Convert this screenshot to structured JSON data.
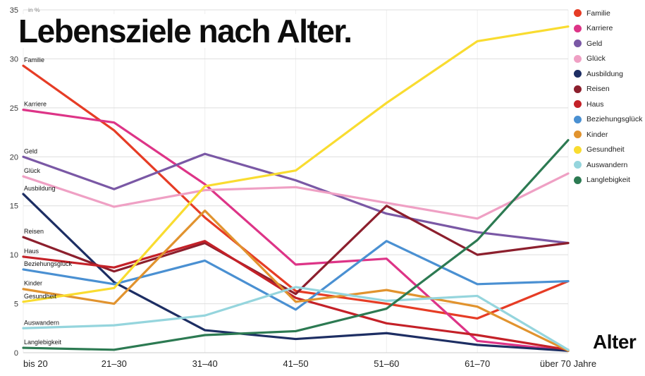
{
  "chart_data": {
    "type": "line",
    "title": "Lebensziele nach Alter.",
    "unit_label": "in %",
    "xlabel": "Alter",
    "ylim": [
      0,
      35
    ],
    "ytick_step": 5,
    "grid": true,
    "legend_position": "right",
    "categories": [
      "bis 20",
      "21–30",
      "31–40",
      "41–50",
      "51–60",
      "61–70",
      "über 70 Jahre"
    ],
    "series": [
      {
        "name": "Familie",
        "color": "#e63c25",
        "values": [
          29.3,
          22.7,
          13.8,
          6.3,
          5.0,
          3.5,
          7.3
        ]
      },
      {
        "name": "Karriere",
        "color": "#dd3487",
        "values": [
          24.8,
          23.5,
          17.2,
          9.0,
          9.6,
          1.2,
          0.2
        ]
      },
      {
        "name": "Geld",
        "color": "#7a58a5",
        "values": [
          20.0,
          16.7,
          20.3,
          17.6,
          14.2,
          12.3,
          11.2
        ]
      },
      {
        "name": "Glück",
        "color": "#efa0c4",
        "values": [
          18.0,
          14.9,
          16.6,
          16.9,
          15.3,
          13.7,
          18.3
        ]
      },
      {
        "name": "Ausbildung",
        "color": "#1d2e63",
        "values": [
          16.2,
          7.2,
          2.3,
          1.4,
          2.0,
          0.8,
          0.2
        ]
      },
      {
        "name": "Reisen",
        "color": "#8c1f2d",
        "values": [
          11.8,
          8.3,
          11.2,
          6.0,
          15.0,
          10.0,
          11.2
        ]
      },
      {
        "name": "Haus",
        "color": "#c42128",
        "values": [
          9.8,
          8.7,
          11.4,
          5.6,
          3.0,
          1.8,
          0.3
        ]
      },
      {
        "name": "Beziehungsglück",
        "color": "#4a90d2",
        "values": [
          8.5,
          7.0,
          9.4,
          4.4,
          11.4,
          7.0,
          7.3
        ]
      },
      {
        "name": "Kinder",
        "color": "#e1932e",
        "values": [
          6.5,
          5.0,
          14.5,
          5.2,
          6.4,
          4.7,
          0.2
        ]
      },
      {
        "name": "Gesundheit",
        "color": "#f9dc30",
        "values": [
          5.2,
          6.6,
          17.0,
          18.6,
          25.5,
          31.8,
          33.3
        ]
      },
      {
        "name": "Auswandern",
        "color": "#95d5dd",
        "values": [
          2.5,
          2.8,
          3.8,
          6.7,
          5.3,
          5.8,
          0.3
        ]
      },
      {
        "name": "Langlebigkeit",
        "color": "#2c7a52",
        "values": [
          0.5,
          0.3,
          1.8,
          2.2,
          4.5,
          11.5,
          21.7
        ]
      }
    ]
  }
}
